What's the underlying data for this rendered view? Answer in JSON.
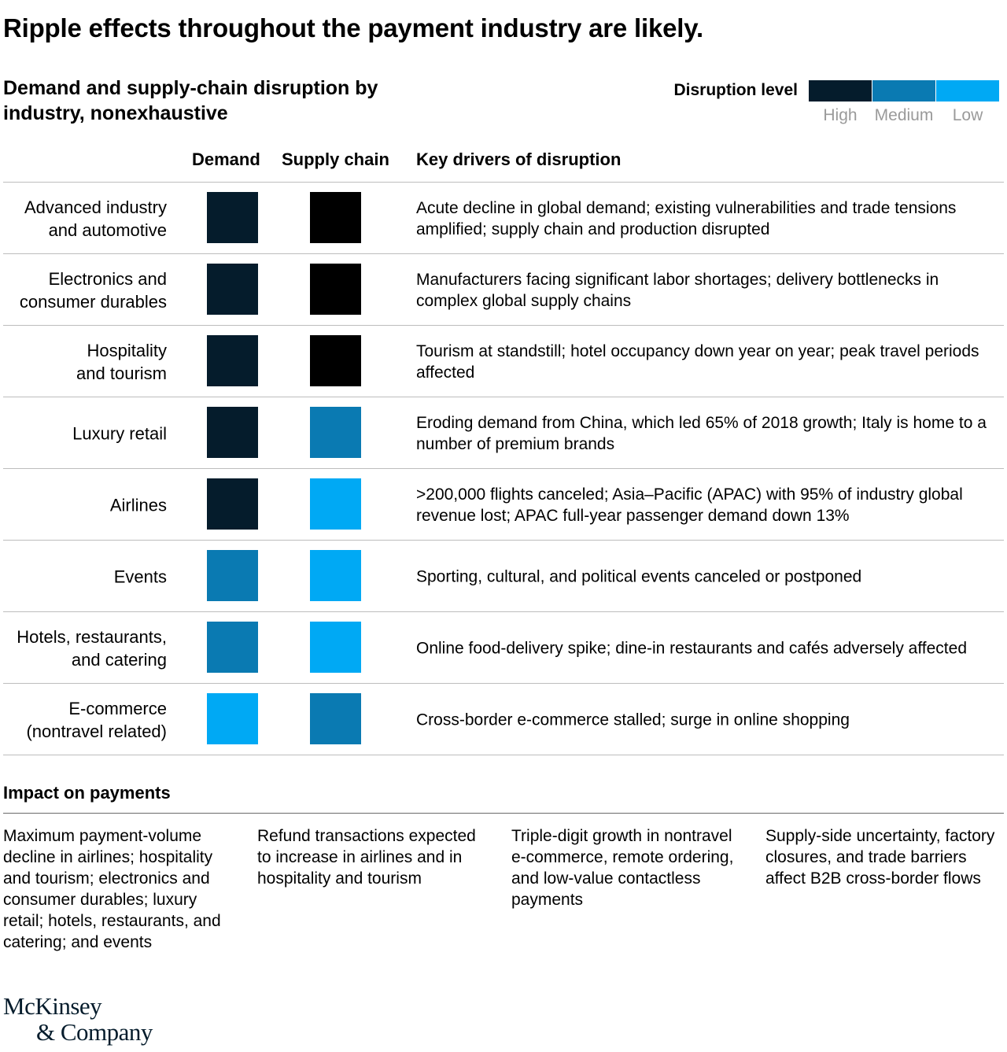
{
  "title": "Ripple effects throughout the payment industry are likely.",
  "subtitle": "Demand and supply-chain disruption by industry, nonexhaustive",
  "legend": {
    "label": "Disruption level",
    "levels": [
      {
        "name": "High",
        "color": "#051c2c"
      },
      {
        "name": "Medium",
        "color": "#0a7ab2"
      },
      {
        "name": "Low",
        "color": "#00a9f4"
      }
    ]
  },
  "columns": {
    "demand": "Demand",
    "supply": "Supply chain",
    "drivers": "Key drivers of disruption"
  },
  "colors": {
    "high_demand": "#051c2c",
    "high_supply": "#000000",
    "medium": "#0a7ab2",
    "low": "#00a9f4"
  },
  "chart_data": {
    "type": "table",
    "title": "Demand and supply-chain disruption by industry, nonexhaustive",
    "levels": [
      "High",
      "Medium",
      "Low"
    ],
    "rows": [
      {
        "industry": "Advanced industry\nand automotive",
        "demand": "High",
        "supply_chain": "High",
        "drivers": "Acute decline in global demand; existing vulnerabilities and trade tensions amplified; supply chain and production disrupted"
      },
      {
        "industry": "Electronics and\nconsumer durables",
        "demand": "High",
        "supply_chain": "High",
        "drivers": "Manufacturers facing significant labor shortages; delivery bottlenecks in complex global supply chains"
      },
      {
        "industry": "Hospitality\nand tourism",
        "demand": "High",
        "supply_chain": "High",
        "drivers": "Tourism at standstill; hotel occupancy down year on year; peak travel periods affected"
      },
      {
        "industry": "Luxury retail",
        "demand": "High",
        "supply_chain": "Medium",
        "drivers": "Eroding demand from China, which led 65% of 2018 growth; Italy is home to a number of premium brands"
      },
      {
        "industry": "Airlines",
        "demand": "High",
        "supply_chain": "Low",
        "drivers": ">200,000 flights canceled; Asia–Pacific (APAC) with 95% of industry global revenue lost; APAC full-year passenger demand down 13%"
      },
      {
        "industry": "Events",
        "demand": "Medium",
        "supply_chain": "Low",
        "drivers": "Sporting, cultural, and political events canceled or postponed"
      },
      {
        "industry": "Hotels, restaurants,\nand catering",
        "demand": "Medium",
        "supply_chain": "Low",
        "drivers": "Online food-delivery spike; dine-in restaurants and cafés adversely affected"
      },
      {
        "industry": "E-commerce\n(nontravel related)",
        "demand": "Low",
        "supply_chain": "Medium",
        "drivers": "Cross-border e-commerce stalled; surge in online shopping"
      }
    ]
  },
  "impact": {
    "heading": "Impact on payments",
    "items": [
      "Maximum payment-volume decline in airlines; hospitality and tourism; electronics and consumer durables; luxury retail; hotels, restaurants, and catering; and events",
      "Refund transactions expected to increase in airlines and in hospitality and tourism",
      "Triple-digit growth in nontravel e-commerce, remote ordering, and low-value contactless payments",
      "Supply-side uncertainty, factory closures, and trade barriers affect B2B cross-border flows"
    ]
  },
  "logo": {
    "line1": "McKinsey",
    "line2": "& Company"
  }
}
